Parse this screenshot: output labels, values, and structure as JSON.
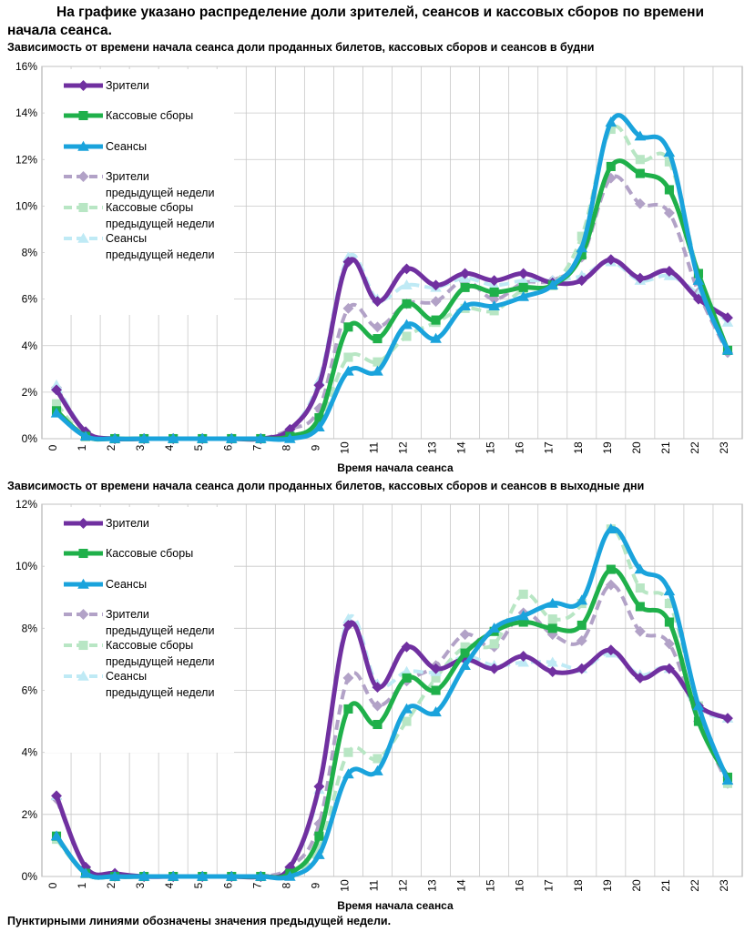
{
  "title_line1": "На графике указано распределение доли зрителей, сеансов и кассовых сборов по времени",
  "title_line2": "начала сеанса.",
  "footnote": "Пунктирными линиями обозначены значения предыдущей недели.",
  "colors": {
    "viewers": "#7030a0",
    "revenue": "#1fb04a",
    "sessions": "#1aa3dc",
    "viewers_prev": "#b2a2c7",
    "revenue_prev": "#b8e6c4",
    "sessions_prev": "#bfeaf5"
  },
  "chart_data": [
    {
      "type": "line",
      "title": "Зависимость от времени начала сеанса доли проданных билетов, кассовых сборов и сеансов в будни",
      "xlabel": "Время начала сеанса",
      "ylabel": "",
      "ylim": [
        0,
        16
      ],
      "yticks": [
        "0%",
        "2%",
        "4%",
        "6%",
        "8%",
        "10%",
        "12%",
        "14%",
        "16%"
      ],
      "categories": [
        "0",
        "1",
        "2",
        "3",
        "4",
        "5",
        "6",
        "7",
        "8",
        "9",
        "10",
        "11",
        "12",
        "13",
        "14",
        "15",
        "16",
        "17",
        "18",
        "19",
        "20",
        "21",
        "22",
        "23"
      ],
      "grid": "on",
      "legend_position": "top-left",
      "series": [
        {
          "name": "Зрители",
          "line": "solid",
          "marker": "diamond",
          "values": [
            2.1,
            0.3,
            0,
            0,
            0,
            0,
            0,
            0,
            0.4,
            2.3,
            7.6,
            5.9,
            7.3,
            6.6,
            7.1,
            6.8,
            7.1,
            6.7,
            6.8,
            7.7,
            6.9,
            7.2,
            6.0,
            5.2
          ]
        },
        {
          "name": "Кассовые сборы",
          "line": "solid",
          "marker": "square",
          "values": [
            1.2,
            0.1,
            0,
            0,
            0,
            0,
            0,
            0,
            0.1,
            0.9,
            4.8,
            4.3,
            5.8,
            5.1,
            6.5,
            6.3,
            6.5,
            6.6,
            7.9,
            11.7,
            11.4,
            10.7,
            7.1,
            3.8
          ]
        },
        {
          "name": "Сеансы",
          "line": "solid",
          "marker": "triangle",
          "values": [
            1.1,
            0.1,
            0,
            0,
            0,
            0,
            0,
            0,
            0,
            0.5,
            2.9,
            2.9,
            4.9,
            4.3,
            5.7,
            5.7,
            6.1,
            6.6,
            8.2,
            13.6,
            13.0,
            12.3,
            6.8,
            3.8
          ]
        },
        {
          "name": "Зрители предыдущей недели",
          "line": "dashed",
          "marker": "diamond",
          "values": [
            2.2,
            0.3,
            0,
            0,
            0,
            0,
            0,
            0,
            0.4,
            1.3,
            5.6,
            4.8,
            5.8,
            5.9,
            6.8,
            6.0,
            6.7,
            6.8,
            7.8,
            11.2,
            10.1,
            9.7,
            6.3,
            3.7
          ]
        },
        {
          "name": "Кассовые сборы предыдущей недели",
          "line": "dashed",
          "marker": "square",
          "values": [
            1.5,
            0.1,
            0,
            0,
            0,
            0,
            0,
            0,
            0.1,
            0.8,
            3.5,
            3.3,
            4.4,
            5.0,
            5.6,
            5.5,
            6.4,
            6.6,
            8.7,
            13.3,
            12.0,
            11.9,
            7.1,
            3.8
          ]
        },
        {
          "name": "Сеансы предыдущей недели",
          "line": "dashed",
          "marker": "triangle",
          "values": [
            2.3,
            0.3,
            0,
            0,
            0,
            0,
            0,
            0,
            0.4,
            2.5,
            7.8,
            6.0,
            6.6,
            6.5,
            6.9,
            6.6,
            6.8,
            6.8,
            7.0,
            7.6,
            6.8,
            7.0,
            6.2,
            5.0
          ]
        }
      ]
    },
    {
      "type": "line",
      "title": "Зависимость от времени начала сеанса доли проданных билетов, кассовых сборов и сеансов в выходные дни",
      "xlabel": "Время начала сеанса",
      "ylabel": "",
      "ylim": [
        0,
        12
      ],
      "yticks": [
        "0%",
        "2%",
        "4%",
        "6%",
        "8%",
        "10%",
        "12%"
      ],
      "categories": [
        "0",
        "1",
        "2",
        "3",
        "4",
        "5",
        "6",
        "7",
        "8",
        "9",
        "10",
        "11",
        "12",
        "13",
        "14",
        "15",
        "16",
        "17",
        "18",
        "19",
        "20",
        "21",
        "22",
        "23"
      ],
      "grid": "on",
      "legend_position": "top-left",
      "series": [
        {
          "name": "Зрители",
          "line": "solid",
          "marker": "diamond",
          "values": [
            2.6,
            0.3,
            0.1,
            0,
            0,
            0,
            0,
            0,
            0.3,
            2.9,
            8.1,
            6.1,
            7.4,
            6.7,
            7.0,
            6.7,
            7.1,
            6.6,
            6.7,
            7.3,
            6.4,
            6.7,
            5.5,
            5.1
          ]
        },
        {
          "name": "Кассовые сборы",
          "line": "solid",
          "marker": "square",
          "values": [
            1.3,
            0.1,
            0,
            0,
            0,
            0,
            0,
            0,
            0.1,
            1.3,
            5.4,
            4.9,
            6.4,
            6.0,
            7.2,
            7.9,
            8.2,
            8.0,
            8.1,
            9.9,
            8.7,
            8.2,
            5.0,
            3.2
          ]
        },
        {
          "name": "Сеансы",
          "line": "solid",
          "marker": "triangle",
          "values": [
            1.3,
            0.1,
            0,
            0,
            0,
            0,
            0,
            0,
            0,
            0.7,
            3.3,
            3.4,
            5.4,
            5.3,
            6.8,
            8.0,
            8.4,
            8.8,
            8.9,
            11.2,
            9.9,
            9.2,
            5.5,
            3.1
          ]
        },
        {
          "name": "Зрители предыдущей недели",
          "line": "dashed",
          "marker": "diamond",
          "values": [
            2.5,
            0.3,
            0,
            0,
            0,
            0,
            0,
            0,
            0.3,
            1.7,
            6.4,
            5.5,
            6.3,
            6.8,
            7.8,
            7.4,
            8.5,
            7.8,
            7.6,
            9.4,
            7.9,
            7.5,
            5.0,
            3.0
          ]
        },
        {
          "name": "Кассовые сборы предыдущей недели",
          "line": "dashed",
          "marker": "square",
          "values": [
            1.2,
            0.1,
            0,
            0,
            0,
            0,
            0,
            0,
            0.1,
            0.9,
            4.0,
            3.8,
            5.0,
            6.4,
            7.4,
            7.5,
            9.1,
            8.3,
            8.8,
            11.2,
            9.3,
            8.8,
            5.5,
            3.0
          ]
        },
        {
          "name": "Сеансы предыдущей недели",
          "line": "dashed",
          "marker": "triangle",
          "values": [
            2.6,
            0.3,
            0.1,
            0,
            0,
            0,
            0,
            0,
            0.3,
            2.8,
            8.3,
            6.2,
            6.6,
            6.6,
            7.1,
            6.8,
            6.9,
            6.9,
            6.7,
            7.2,
            6.5,
            6.7,
            5.4,
            5.1
          ]
        }
      ]
    }
  ]
}
